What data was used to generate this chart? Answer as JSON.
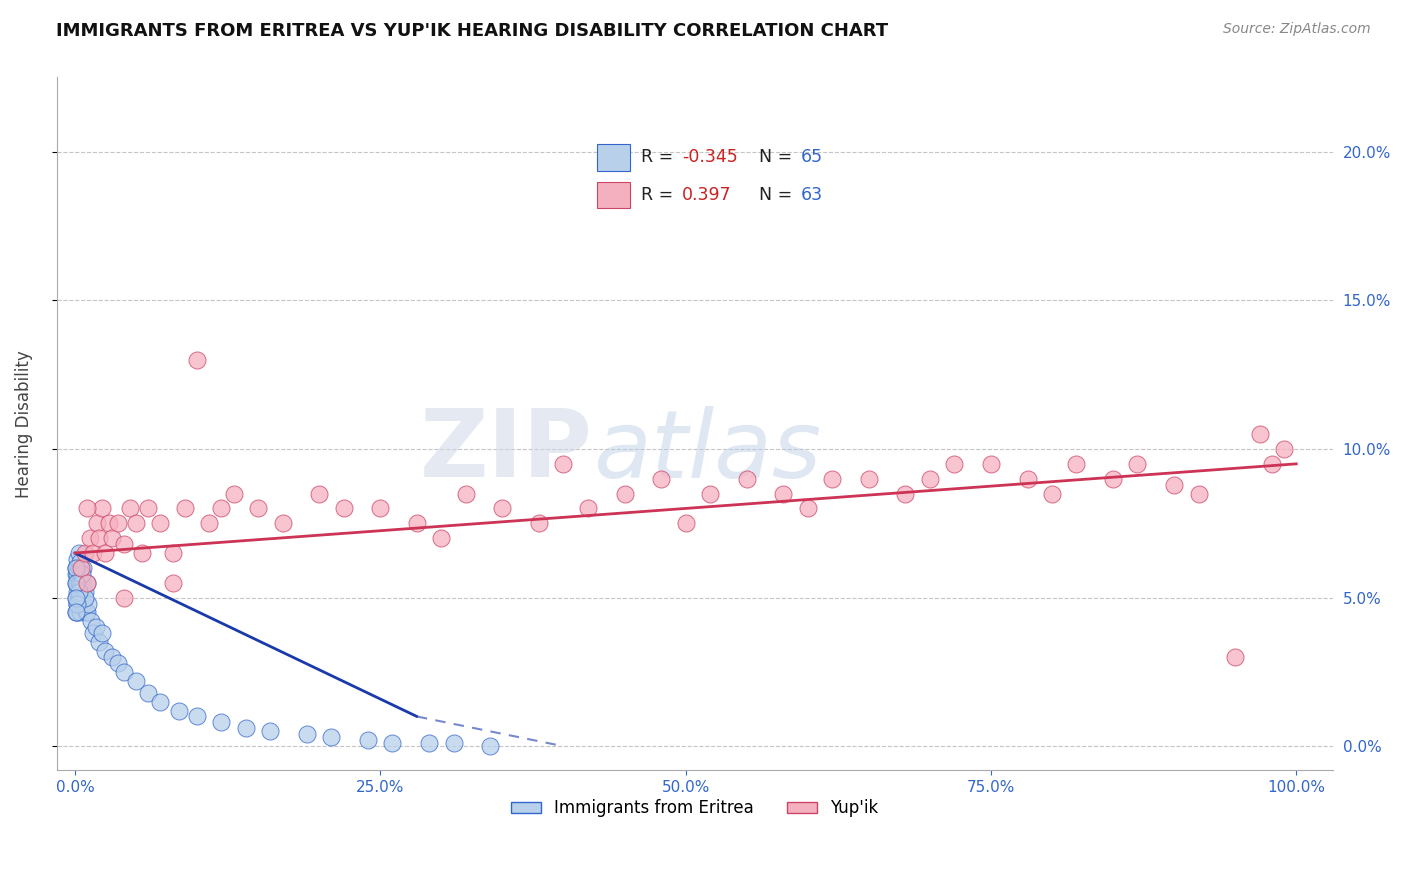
{
  "title": "IMMIGRANTS FROM ERITREA VS YUP'IK HEARING DISABILITY CORRELATION CHART",
  "source_text": "Source: ZipAtlas.com",
  "ylabel": "Hearing Disability",
  "legend_label_1": "Immigrants from Eritrea",
  "legend_label_2": "Yup'ik",
  "R1": -0.345,
  "N1": 65,
  "R2": 0.397,
  "N2": 63,
  "color_blue_face": "#b8d0ea",
  "color_blue_edge": "#3366cc",
  "color_pink_face": "#f5b0c0",
  "color_pink_edge": "#cc4466",
  "line_color_blue": "#1a3aaa",
  "line_color_pink": "#cc3355",
  "watermark": "ZIPatlas",
  "xlim_min": -0.015,
  "xlim_max": 1.03,
  "ylim_min": -0.008,
  "ylim_max": 0.225,
  "xtick_vals": [
    0.0,
    0.25,
    0.5,
    0.75,
    1.0
  ],
  "ytick_vals": [
    0.0,
    0.05,
    0.1,
    0.15,
    0.2
  ],
  "title_fontsize": 13,
  "axis_label_fontsize": 12,
  "tick_fontsize": 11,
  "source_fontsize": 10,
  "blue_x": [
    0.001,
    0.001,
    0.001,
    0.001,
    0.001,
    0.002,
    0.002,
    0.002,
    0.002,
    0.002,
    0.002,
    0.002,
    0.003,
    0.003,
    0.003,
    0.003,
    0.003,
    0.004,
    0.004,
    0.004,
    0.004,
    0.005,
    0.005,
    0.005,
    0.006,
    0.006,
    0.007,
    0.007,
    0.008,
    0.009,
    0.01,
    0.011,
    0.013,
    0.015,
    0.017,
    0.02,
    0.022,
    0.025,
    0.03,
    0.035,
    0.04,
    0.05,
    0.06,
    0.07,
    0.085,
    0.1,
    0.12,
    0.14,
    0.16,
    0.19,
    0.21,
    0.24,
    0.26,
    0.29,
    0.31,
    0.34,
    0.01,
    0.008,
    0.006,
    0.003,
    0.002,
    0.001,
    0.001,
    0.001,
    0.001
  ],
  "blue_y": [
    0.055,
    0.06,
    0.05,
    0.045,
    0.058,
    0.052,
    0.06,
    0.048,
    0.055,
    0.063,
    0.045,
    0.058,
    0.065,
    0.05,
    0.055,
    0.048,
    0.06,
    0.055,
    0.05,
    0.062,
    0.045,
    0.058,
    0.053,
    0.048,
    0.05,
    0.055,
    0.048,
    0.06,
    0.052,
    0.045,
    0.045,
    0.048,
    0.042,
    0.038,
    0.04,
    0.035,
    0.038,
    0.032,
    0.03,
    0.028,
    0.025,
    0.022,
    0.018,
    0.015,
    0.012,
    0.01,
    0.008,
    0.006,
    0.005,
    0.004,
    0.003,
    0.002,
    0.001,
    0.001,
    0.001,
    0.0,
    0.055,
    0.05,
    0.058,
    0.052,
    0.048,
    0.06,
    0.055,
    0.05,
    0.045
  ],
  "pink_x": [
    0.005,
    0.008,
    0.01,
    0.012,
    0.015,
    0.018,
    0.02,
    0.022,
    0.025,
    0.028,
    0.03,
    0.035,
    0.04,
    0.045,
    0.05,
    0.055,
    0.06,
    0.07,
    0.08,
    0.09,
    0.1,
    0.11,
    0.12,
    0.13,
    0.15,
    0.17,
    0.2,
    0.22,
    0.25,
    0.28,
    0.3,
    0.32,
    0.35,
    0.38,
    0.4,
    0.42,
    0.45,
    0.48,
    0.5,
    0.52,
    0.55,
    0.58,
    0.6,
    0.62,
    0.65,
    0.68,
    0.7,
    0.72,
    0.75,
    0.78,
    0.8,
    0.82,
    0.85,
    0.87,
    0.9,
    0.92,
    0.95,
    0.97,
    0.98,
    0.99,
    0.01,
    0.04,
    0.08
  ],
  "pink_y": [
    0.06,
    0.065,
    0.055,
    0.07,
    0.065,
    0.075,
    0.07,
    0.08,
    0.065,
    0.075,
    0.07,
    0.075,
    0.068,
    0.08,
    0.075,
    0.065,
    0.08,
    0.075,
    0.065,
    0.08,
    0.13,
    0.075,
    0.08,
    0.085,
    0.08,
    0.075,
    0.085,
    0.08,
    0.08,
    0.075,
    0.07,
    0.085,
    0.08,
    0.075,
    0.095,
    0.08,
    0.085,
    0.09,
    0.075,
    0.085,
    0.09,
    0.085,
    0.08,
    0.09,
    0.09,
    0.085,
    0.09,
    0.095,
    0.095,
    0.09,
    0.085,
    0.095,
    0.09,
    0.095,
    0.088,
    0.085,
    0.03,
    0.105,
    0.095,
    0.1,
    0.08,
    0.05,
    0.055
  ]
}
